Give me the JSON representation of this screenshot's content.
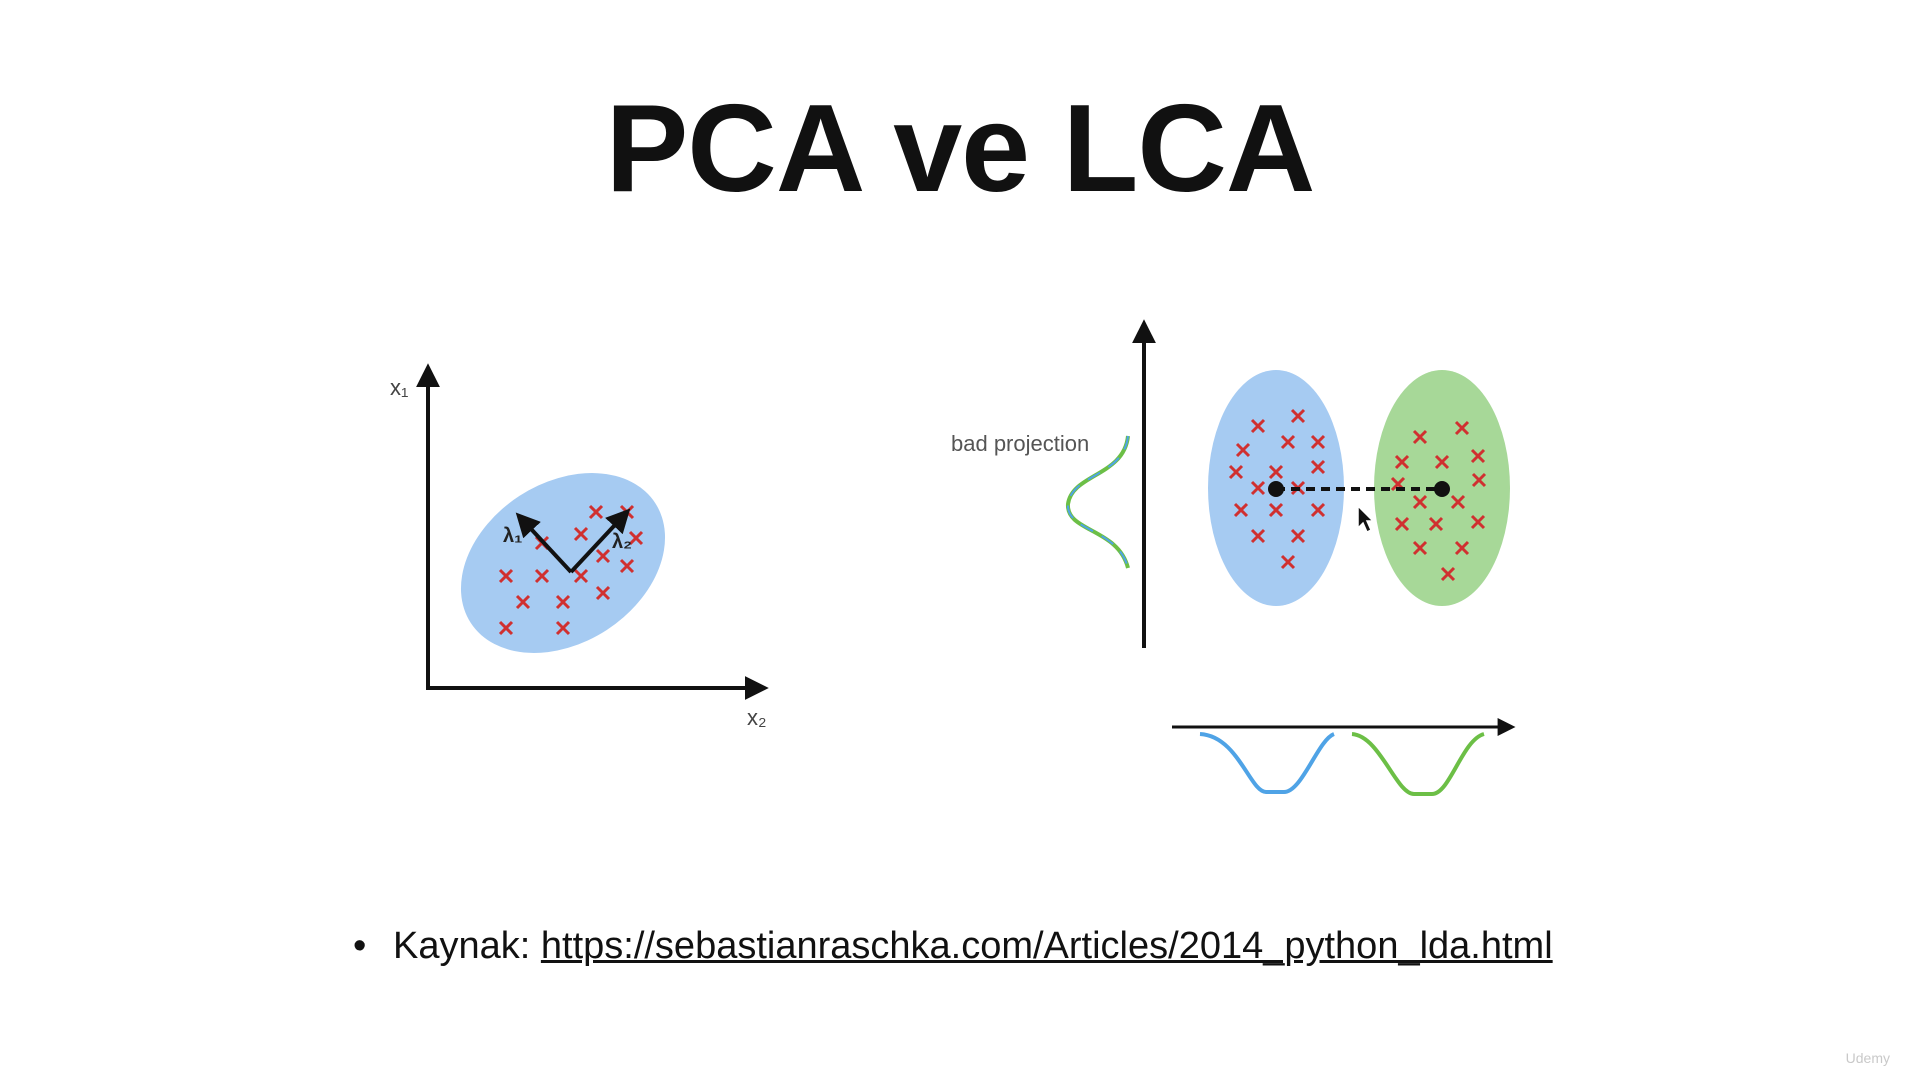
{
  "slide": {
    "title": "PCA ve LCA",
    "bullet": {
      "label": "Kaynak: ",
      "link": "https://sebastianraschka.com/Articles/2014_python_lda.html"
    },
    "watermark": "Udemy"
  },
  "pca_diagram": {
    "y_axis_label": "x₁",
    "x_axis_label": "x₂",
    "vector_labels": [
      "λ₁",
      "λ₂"
    ],
    "cluster_color": "#a6cbf2",
    "marker_color": "#d03030"
  },
  "lda_diagram": {
    "annotation": "bad projection",
    "class_colors": [
      "#a6cbf2",
      "#a7d898"
    ],
    "curve_colors": [
      "#4fa3e6",
      "#6cbf46"
    ],
    "marker_color": "#d03030"
  }
}
